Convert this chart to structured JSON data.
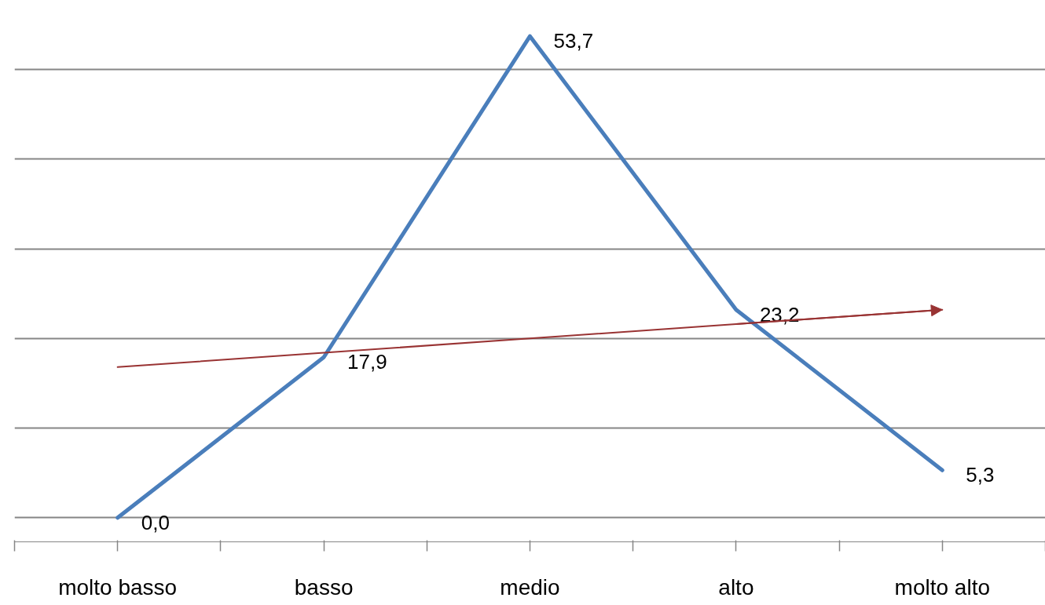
{
  "chart_data": {
    "type": "line",
    "categories": [
      "molto basso",
      "basso",
      "medio",
      "alto",
      "molto alto"
    ],
    "series": [
      {
        "color": "#4a7ebb",
        "values": [
          0.0,
          17.9,
          53.7,
          23.2,
          5.3
        ],
        "value_labels": [
          "0,0",
          "17,9",
          "53,7",
          "23,2",
          "5,3"
        ]
      },
      {
        "type": "line",
        "color": "#993333",
        "values": [
          16.8,
          18.4,
          20.0,
          21.6,
          23.2
        ]
      }
    ],
    "tick_labels": "x",
    "grid": "y",
    "marker": "none",
    "line_style": "solid"
  }
}
